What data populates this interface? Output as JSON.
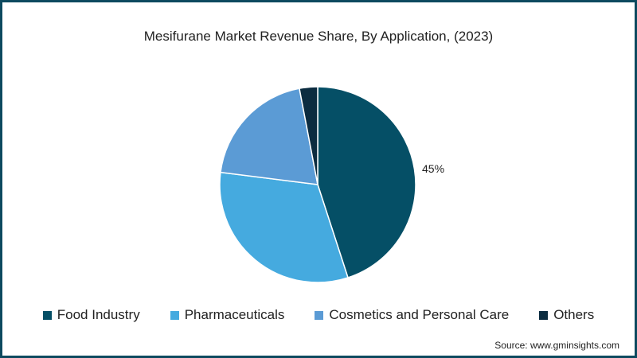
{
  "title": "Mesifurane Market Revenue Share, By Application,  (2023)",
  "source": "Source: www.gminsights.com",
  "chart_data": {
    "type": "pie",
    "title": "Mesifurane Market Revenue Share, By Application,  (2023)",
    "categories": [
      "Food Industry",
      "Pharmaceuticals",
      "Cosmetics and Personal Care",
      "Others"
    ],
    "values": [
      45,
      32,
      20,
      3
    ],
    "colors": [
      "#054f66",
      "#45aadf",
      "#5b9bd5",
      "#0b2c40"
    ],
    "data_labels": [
      "45%",
      "",
      "",
      ""
    ],
    "start_angle_deg": 0,
    "direction": "clockwise",
    "legend_position": "bottom"
  },
  "legend": [
    {
      "label": "Food Industry",
      "color": "#054f66"
    },
    {
      "label": "Pharmaceuticals",
      "color": "#45aadf"
    },
    {
      "label": "Cosmetics and Personal Care",
      "color": "#5b9bd5"
    },
    {
      "label": "Others",
      "color": "#0b2c40"
    }
  ]
}
